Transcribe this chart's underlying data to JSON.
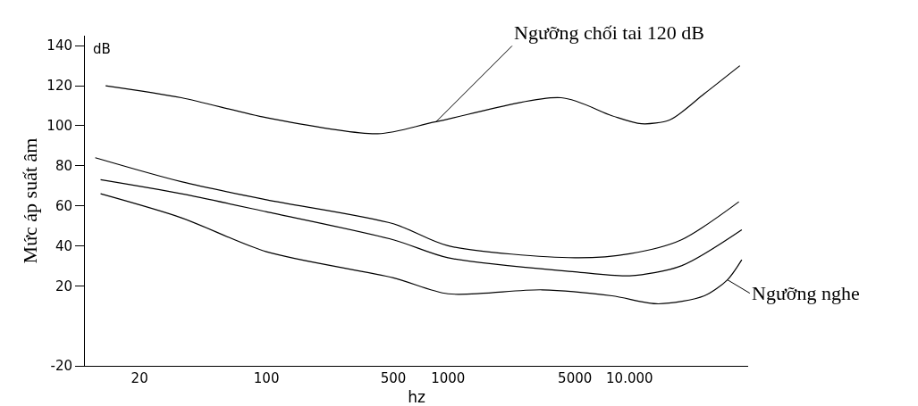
{
  "chart_data": {
    "type": "line",
    "xlabel": "hz",
    "ylabel": "Mức áp suất âm",
    "log": "x",
    "xlim": [
      10,
      45000
    ],
    "xticks": [
      20,
      100,
      500,
      1000,
      5000,
      {
        "value": 10000,
        "label": "10.000"
      }
    ],
    "ylim": [
      -20,
      145
    ],
    "yticks": [
      -20,
      20,
      40,
      60,
      80,
      100,
      120,
      140
    ],
    "grid": false,
    "marker": "none",
    "line_style": "solid",
    "series": [
      {
        "color": "#000000",
        "x": [
          13,
          34,
          100,
          410,
          860,
          4200,
          8000,
          11600,
          16700,
          25800,
          40500
        ],
        "values": [
          120,
          114,
          104,
          96,
          102,
          114,
          105,
          101,
          103,
          116,
          130
        ]
      },
      {
        "color": "#000000",
        "x": [
          11.4,
          34,
          100,
          500,
          1000,
          5000,
          10000,
          19300,
          40000
        ],
        "values": [
          84,
          72,
          63,
          51,
          40,
          34,
          36,
          43,
          62
        ]
      },
      {
        "color": "#000000",
        "x": [
          12.2,
          34,
          100,
          500,
          1000,
          5000,
          10000,
          19300,
          41500
        ],
        "values": [
          73,
          66,
          57,
          43,
          34,
          27,
          25,
          30,
          48
        ]
      },
      {
        "color": "#000000",
        "x": [
          12.2,
          34,
          100,
          500,
          1000,
          3300,
          8000,
          14400,
          25800,
          34600,
          41500
        ],
        "values": [
          66,
          54,
          37,
          24,
          16,
          18,
          15,
          11,
          15,
          23,
          33
        ]
      }
    ],
    "annotations": [
      "dB",
      {
        "text": "Ngưỡng chối tai 120 dB",
        "x": 860,
        "y": 102
      },
      {
        "text": "Ngưỡng nghe",
        "x": 34600,
        "y": 23
      }
    ]
  }
}
